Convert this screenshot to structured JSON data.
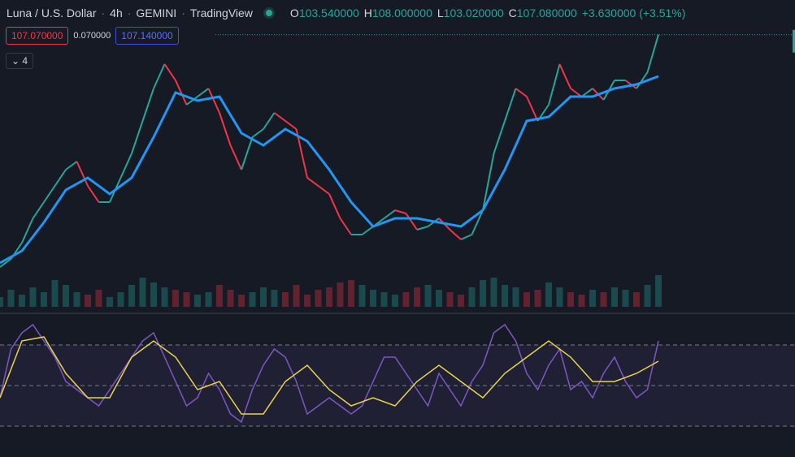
{
  "header": {
    "symbol": "Luna / U.S. Dollar",
    "interval": "4h",
    "exchange": "GEMINI",
    "source": "TradingView",
    "ohlc": [
      {
        "key": "O",
        "value": "103.540000"
      },
      {
        "key": "H",
        "value": "108.000000"
      },
      {
        "key": "L",
        "value": "103.020000"
      },
      {
        "key": "C",
        "value": "107.080000"
      }
    ],
    "change": "+3.630000 (+3.51%)"
  },
  "quote": {
    "bid": "107.070000",
    "spread": "0.070000",
    "ask": "107.140000"
  },
  "indicators_collapsed": "4",
  "price_panel": {
    "ylim": [
      32,
      109
    ],
    "last": 107.07,
    "close": [
      35.5,
      38,
      43,
      50.5,
      55.5,
      60.5,
      65.5,
      68,
      60.5,
      55.5,
      55.5,
      63,
      70.5,
      80.5,
      90.5,
      98,
      93,
      85.5,
      88,
      90.5,
      83,
      73,
      65.5,
      75.5,
      78,
      83,
      80.5,
      78,
      63,
      60.5,
      58,
      50.5,
      45.5,
      45.5,
      48,
      50.5,
      53,
      52,
      47,
      48,
      50.5,
      47,
      44,
      45.5,
      53,
      70.5,
      80.5,
      90.5,
      88,
      80.5,
      85.5,
      98,
      90.5,
      88,
      90.5,
      87,
      93,
      93,
      90.5,
      95.5,
      107.08
    ],
    "ma": [
      36.75,
      40.5,
      49.25,
      59.25,
      63,
      58,
      63,
      75.5,
      89.25,
      86.75,
      88,
      76.75,
      73,
      78,
      74.25,
      65.5,
      55.5,
      48,
      50.5,
      50.5,
      49.25,
      48,
      53,
      65.5,
      80.5,
      81.75,
      88,
      88,
      90.5,
      91.75,
      94.25
    ],
    "up_color": "#26a69a",
    "down_color": "#f23645",
    "ma_color": "#2196f3"
  },
  "volume_panel": {
    "ylim": [
      0,
      100
    ],
    "values": [
      20,
      35,
      25,
      40,
      30,
      55,
      45,
      30,
      25,
      35,
      20,
      30,
      45,
      60,
      50,
      40,
      35,
      30,
      25,
      30,
      45,
      35,
      25,
      30,
      40,
      35,
      30,
      45,
      25,
      35,
      40,
      50,
      55,
      45,
      35,
      30,
      25,
      30,
      40,
      45,
      35,
      30,
      25,
      40,
      55,
      60,
      45,
      40,
      30,
      35,
      50,
      40,
      30,
      25,
      35,
      30,
      40,
      35,
      30,
      45,
      65
    ]
  },
  "rsi_panel": {
    "ylim": [
      18,
      82
    ],
    "levels": [
      70,
      50,
      30
    ],
    "rsi": [
      44,
      68,
      76,
      80,
      72,
      64,
      52,
      48,
      44,
      40,
      48,
      56,
      64,
      72,
      76,
      64,
      52,
      40,
      44,
      56,
      48,
      36,
      32,
      48,
      60,
      68,
      64,
      52,
      36,
      40,
      44,
      40,
      36,
      40,
      52,
      64,
      64,
      56,
      48,
      40,
      56,
      48,
      40,
      52,
      60,
      76,
      80,
      72,
      56,
      48,
      60,
      68,
      48,
      52,
      44,
      56,
      64,
      52,
      44,
      48,
      72
    ],
    "rsi_ma": [
      44,
      72,
      74,
      56,
      44,
      44,
      64,
      72,
      64,
      48,
      52,
      36,
      36,
      52,
      60,
      48,
      40,
      44,
      40,
      52,
      60,
      52,
      44,
      56,
      64,
      72,
      64,
      52,
      52,
      56,
      62
    ],
    "rsi_color": "#7e57c2",
    "ma_color": "#e8d44d"
  }
}
